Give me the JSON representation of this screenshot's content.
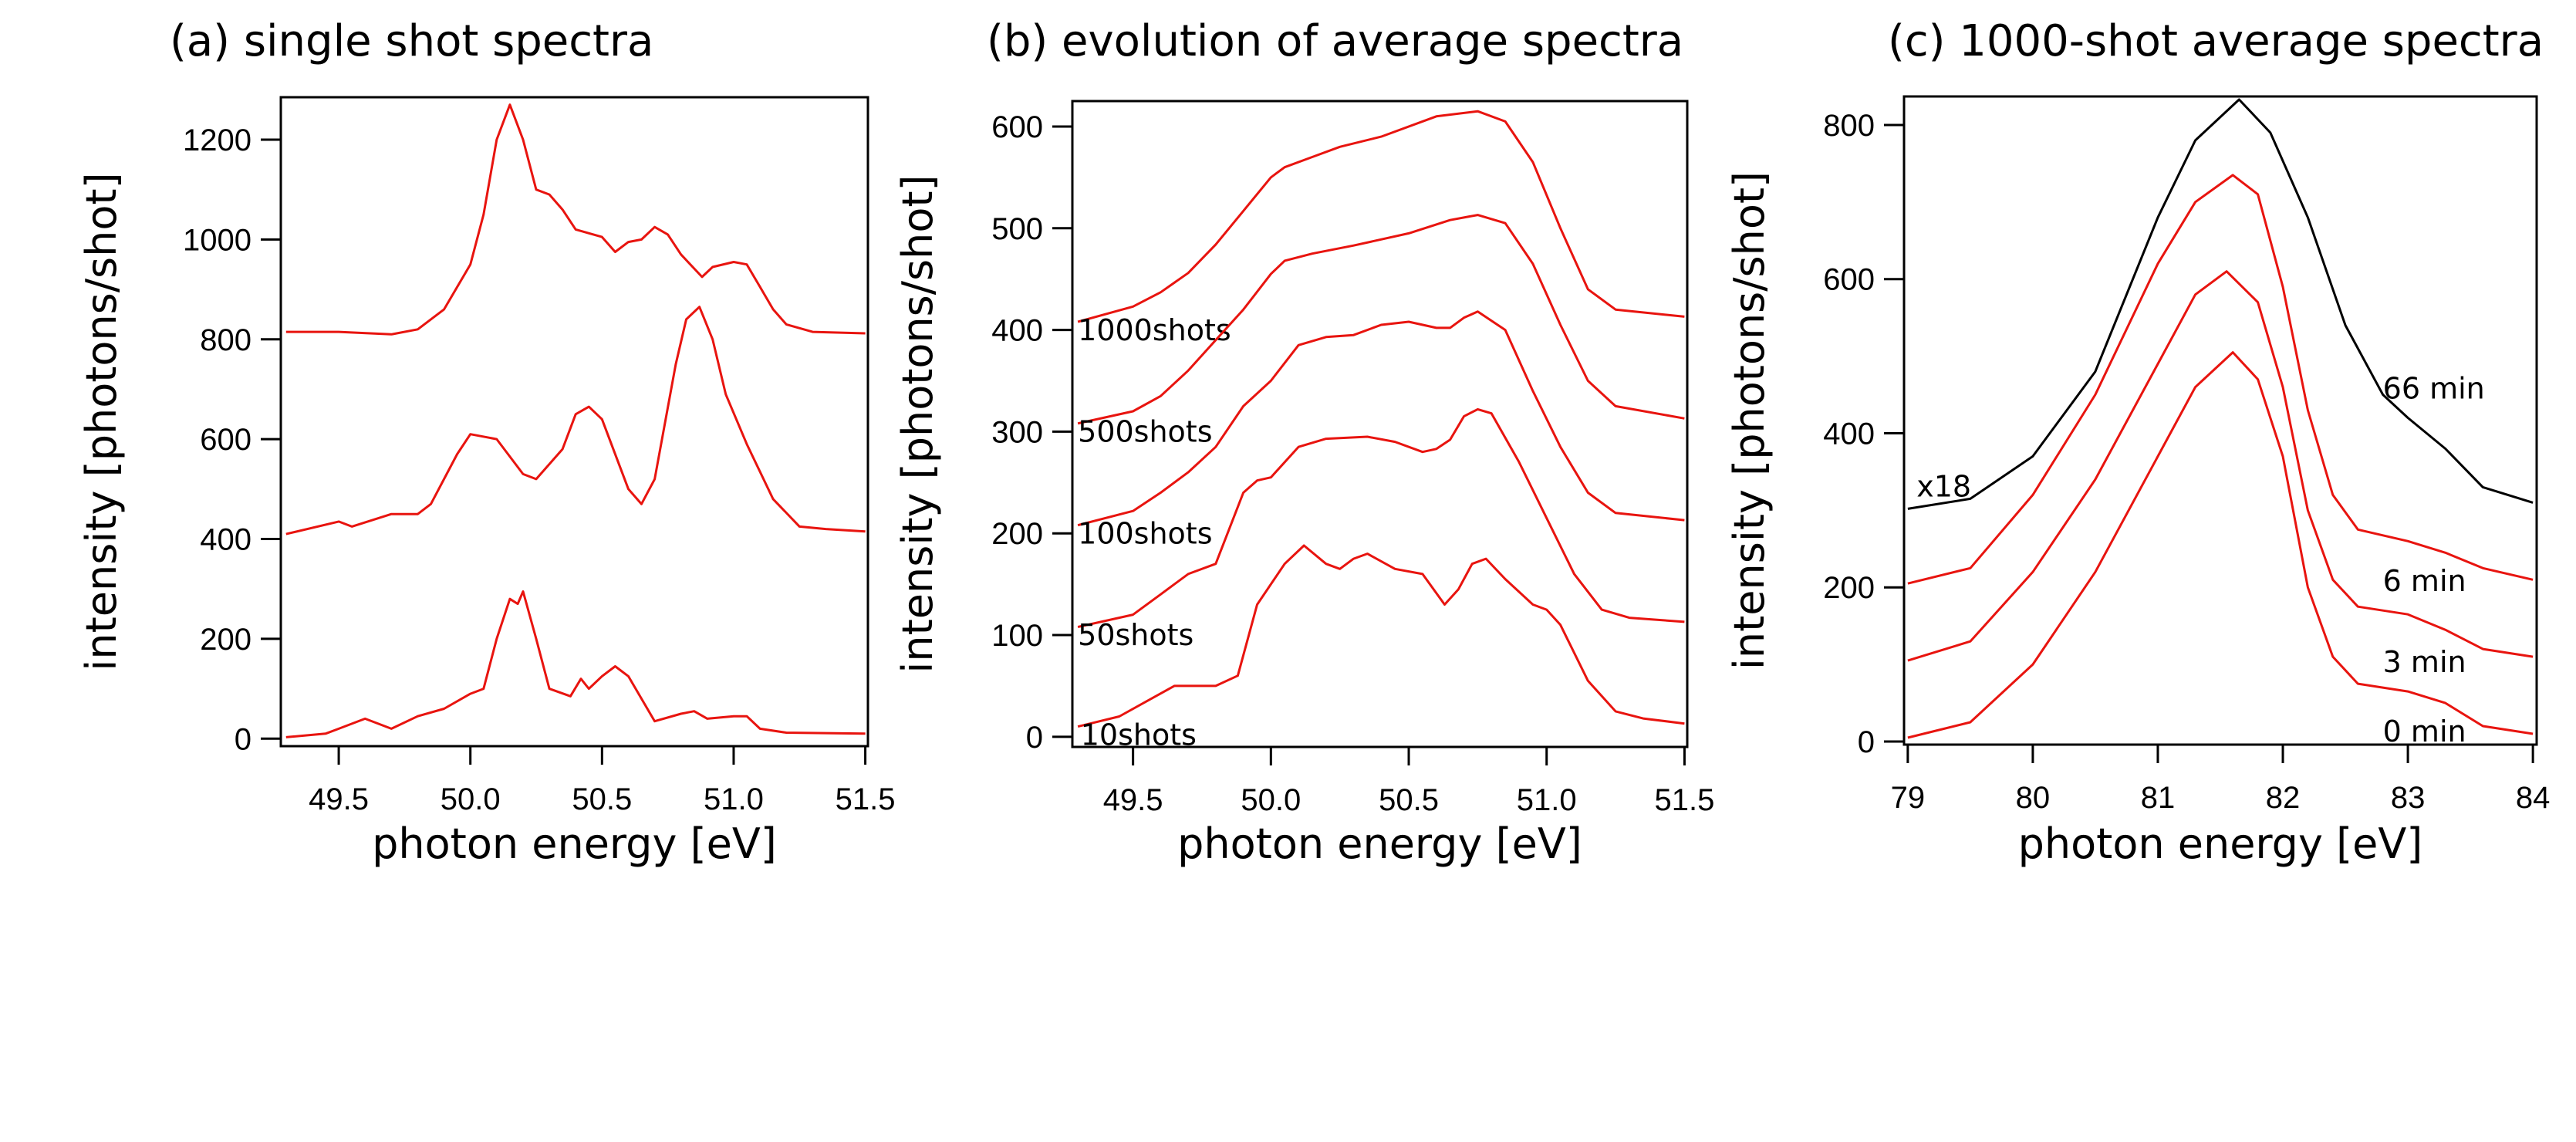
{
  "chart_data": [
    {
      "type": "line",
      "title": "(a) single shot spectra",
      "xlabel": "photon energy [eV]",
      "ylabel": "intensity [photons/shot]",
      "xlim": [
        49.28,
        51.51
      ],
      "ylim": [
        -15,
        1285
      ],
      "xticks": [
        49.5,
        50.0,
        50.5,
        51.0,
        51.5
      ],
      "xtick_labels": [
        "49.5",
        "50.0",
        "50.5",
        "51.0",
        "51.5"
      ],
      "yticks": [
        0,
        200,
        400,
        600,
        800,
        1000,
        1200
      ],
      "ytick_labels": [
        "0",
        "200",
        "400",
        "600",
        "800",
        "1000",
        "1200"
      ],
      "grid": false,
      "series": [
        {
          "color": "#e8140f",
          "x": [
            49.3,
            49.5,
            49.7,
            49.8,
            49.9,
            50.0,
            50.05,
            50.1,
            50.15,
            50.2,
            50.25,
            50.3,
            50.35,
            50.4,
            50.5,
            50.55,
            50.6,
            50.65,
            50.7,
            50.75,
            50.8,
            50.88,
            50.92,
            51.0,
            51.05,
            51.1,
            51.15,
            51.2,
            51.3,
            51.5
          ],
          "y": [
            815,
            815,
            810,
            820,
            860,
            950,
            1050,
            1200,
            1270,
            1200,
            1100,
            1090,
            1060,
            1020,
            1005,
            975,
            995,
            1000,
            1025,
            1010,
            970,
            925,
            945,
            955,
            950,
            905,
            860,
            830,
            815,
            812
          ]
        },
        {
          "color": "#e8140f",
          "x": [
            49.3,
            49.5,
            49.55,
            49.7,
            49.8,
            49.85,
            49.95,
            50.0,
            50.1,
            50.2,
            50.25,
            50.35,
            50.4,
            50.45,
            50.5,
            50.6,
            50.65,
            50.7,
            50.78,
            50.82,
            50.87,
            50.92,
            50.97,
            51.05,
            51.15,
            51.25,
            51.35,
            51.5
          ],
          "y": [
            410,
            435,
            425,
            450,
            450,
            470,
            570,
            610,
            600,
            530,
            520,
            580,
            650,
            665,
            640,
            500,
            470,
            520,
            750,
            840,
            865,
            800,
            690,
            590,
            480,
            425,
            420,
            415
          ]
        },
        {
          "color": "#e8140f",
          "x": [
            49.3,
            49.45,
            49.5,
            49.6,
            49.65,
            49.7,
            49.8,
            49.9,
            50.0,
            50.05,
            50.1,
            50.15,
            50.18,
            50.2,
            50.25,
            50.3,
            50.38,
            50.42,
            50.45,
            50.5,
            50.55,
            50.6,
            50.65,
            50.7,
            50.8,
            50.85,
            50.9,
            51.0,
            51.05,
            51.1,
            51.2,
            51.5
          ],
          "y": [
            3,
            10,
            20,
            40,
            30,
            20,
            45,
            60,
            90,
            100,
            200,
            280,
            270,
            295,
            200,
            100,
            85,
            120,
            100,
            125,
            145,
            125,
            80,
            35,
            50,
            55,
            40,
            45,
            45,
            20,
            12,
            10
          ]
        }
      ]
    },
    {
      "type": "line",
      "title": "(b) evolution of average spectra",
      "xlabel": "photon energy [eV]",
      "ylabel": "intensity [photons/shot]",
      "xlim": [
        49.28,
        51.51
      ],
      "ylim": [
        -10,
        625
      ],
      "xticks": [
        49.5,
        50.0,
        50.5,
        51.0,
        51.5
      ],
      "xtick_labels": [
        "49.5",
        "50.0",
        "50.5",
        "51.0",
        "51.5"
      ],
      "yticks": [
        0,
        100,
        200,
        300,
        400,
        500,
        600
      ],
      "ytick_labels": [
        "0",
        "100",
        "200",
        "300",
        "400",
        "500",
        "600"
      ],
      "grid": false,
      "series": [
        {
          "name": "1000shots",
          "color": "#e8140f",
          "x": [
            49.3,
            49.5,
            49.6,
            49.7,
            49.8,
            49.9,
            50.0,
            50.05,
            50.15,
            50.25,
            50.4,
            50.6,
            50.75,
            50.85,
            50.95,
            51.05,
            51.15,
            51.25,
            51.5
          ],
          "y": [
            408,
            423,
            437,
            456,
            484,
            517,
            550,
            560,
            570,
            580,
            590,
            610,
            615,
            605,
            565,
            500,
            440,
            420,
            413
          ]
        },
        {
          "name": "500shots",
          "color": "#e8140f",
          "x": [
            49.3,
            49.5,
            49.6,
            49.7,
            49.8,
            49.9,
            50.0,
            50.05,
            50.15,
            50.3,
            50.5,
            50.65,
            50.75,
            50.85,
            50.95,
            51.05,
            51.15,
            51.25,
            51.5
          ],
          "y": [
            308,
            320,
            335,
            360,
            390,
            420,
            455,
            468,
            475,
            483,
            495,
            508,
            513,
            505,
            465,
            405,
            350,
            325,
            313
          ]
        },
        {
          "name": "100shots",
          "color": "#e8140f",
          "x": [
            49.3,
            49.5,
            49.6,
            49.7,
            49.8,
            49.9,
            50.0,
            50.1,
            50.2,
            50.3,
            50.4,
            50.5,
            50.6,
            50.65,
            50.7,
            50.75,
            50.85,
            50.95,
            51.05,
            51.15,
            51.25,
            51.5
          ],
          "y": [
            208,
            222,
            240,
            260,
            285,
            325,
            350,
            385,
            393,
            395,
            405,
            408,
            402,
            402,
            412,
            418,
            400,
            340,
            285,
            240,
            220,
            213
          ]
        },
        {
          "name": "50shots",
          "color": "#e8140f",
          "x": [
            49.3,
            49.5,
            49.6,
            49.7,
            49.8,
            49.9,
            49.95,
            50.0,
            50.1,
            50.2,
            50.35,
            50.45,
            50.55,
            50.6,
            50.65,
            50.7,
            50.75,
            50.8,
            50.9,
            51.0,
            51.1,
            51.2,
            51.3,
            51.5
          ],
          "y": [
            108,
            120,
            140,
            160,
            170,
            240,
            252,
            255,
            285,
            293,
            295,
            290,
            280,
            283,
            292,
            315,
            322,
            318,
            270,
            215,
            160,
            125,
            117,
            113
          ]
        },
        {
          "name": "10shots",
          "color": "#e8140f",
          "x": [
            49.3,
            49.45,
            49.55,
            49.65,
            49.8,
            49.88,
            49.95,
            50.05,
            50.12,
            50.2,
            50.25,
            50.3,
            50.35,
            50.45,
            50.55,
            50.63,
            50.68,
            50.73,
            50.78,
            50.85,
            50.95,
            51.0,
            51.05,
            51.15,
            51.25,
            51.35,
            51.5
          ],
          "y": [
            10,
            20,
            35,
            50,
            50,
            60,
            130,
            170,
            188,
            170,
            165,
            175,
            180,
            165,
            160,
            130,
            145,
            170,
            175,
            155,
            130,
            125,
            110,
            55,
            25,
            18,
            13
          ]
        }
      ]
    },
    {
      "type": "line",
      "title": "(c) 1000-shot average spectra",
      "xlabel": "photon energy [eV]",
      "ylabel": "intensity [photons/shot]",
      "xlim": [
        78.97,
        84.03
      ],
      "ylim": [
        -4,
        837
      ],
      "xticks": [
        79,
        80,
        81,
        82,
        83,
        84
      ],
      "xtick_labels": [
        "79",
        "80",
        "81",
        "82",
        "83",
        "84"
      ],
      "yticks": [
        0,
        200,
        400,
        600,
        800
      ],
      "ytick_labels": [
        "0",
        "200",
        "400",
        "600",
        "800"
      ],
      "grid": false,
      "annotations": [
        "x18"
      ],
      "series": [
        {
          "name": "66 min",
          "color": "#000000",
          "x": [
            79,
            79.5,
            80,
            80.5,
            81,
            81.3,
            81.65,
            81.9,
            82.2,
            82.5,
            82.8,
            83,
            83.3,
            83.6,
            84
          ],
          "y": [
            302,
            315,
            370,
            480,
            680,
            780,
            833,
            790,
            680,
            540,
            450,
            420,
            380,
            330,
            310
          ]
        },
        {
          "name": "6 min",
          "color": "#e8140f",
          "x": [
            79,
            79.5,
            80,
            80.5,
            81,
            81.3,
            81.6,
            81.8,
            82.0,
            82.2,
            82.4,
            82.6,
            83,
            83.3,
            83.6,
            84
          ],
          "y": [
            205,
            225,
            320,
            450,
            620,
            700,
            735,
            710,
            590,
            430,
            320,
            275,
            260,
            245,
            225,
            210
          ]
        },
        {
          "name": "3 min",
          "color": "#e8140f",
          "x": [
            79,
            79.5,
            80,
            80.5,
            81,
            81.3,
            81.55,
            81.8,
            82.0,
            82.2,
            82.4,
            82.6,
            83,
            83.3,
            83.6,
            84
          ],
          "y": [
            105,
            130,
            220,
            340,
            490,
            580,
            610,
            570,
            460,
            300,
            210,
            175,
            165,
            145,
            120,
            110
          ]
        },
        {
          "name": "0 min",
          "color": "#e8140f",
          "x": [
            79,
            79.5,
            80,
            80.5,
            81,
            81.3,
            81.6,
            81.8,
            82.0,
            82.2,
            82.4,
            82.6,
            82.8,
            83.0,
            83.3,
            83.6,
            84
          ],
          "y": [
            5,
            25,
            100,
            220,
            370,
            460,
            505,
            470,
            370,
            200,
            110,
            75,
            70,
            65,
            50,
            20,
            10
          ]
        }
      ]
    }
  ]
}
